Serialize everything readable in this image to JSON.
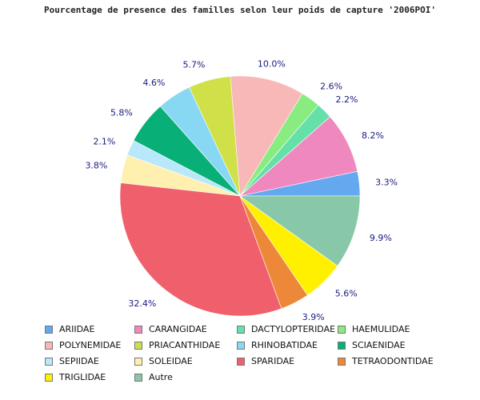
{
  "chart_data": {
    "type": "pie",
    "title": "Pourcentage de presence des familles selon leur poids de capture '2006POI'",
    "slices": [
      {
        "name": "ARIIDAE",
        "value": 3.3,
        "label": "3.3%",
        "color": "#64a8f0"
      },
      {
        "name": "CARANGIDAE",
        "value": 8.2,
        "label": "8.2%",
        "color": "#f088c0"
      },
      {
        "name": "DACTYLOPTERIDAE",
        "value": 2.2,
        "label": "2.2%",
        "color": "#64e0a8"
      },
      {
        "name": "HAEMULIDAE",
        "value": 2.6,
        "label": "2.6%",
        "color": "#88ec80"
      },
      {
        "name": "POLYNEMIDAE",
        "value": 10.0,
        "label": "10.0%",
        "color": "#f8b8b8"
      },
      {
        "name": "PRIACANTHIDAE",
        "value": 5.7,
        "label": "5.7%",
        "color": "#d0e048"
      },
      {
        "name": "RHINOBATIDAE",
        "value": 4.6,
        "label": "4.6%",
        "color": "#88d8f4"
      },
      {
        "name": "SCIAENIDAE",
        "value": 5.8,
        "label": "5.8%",
        "color": "#08b078"
      },
      {
        "name": "SEPIIDAE",
        "value": 2.1,
        "label": "2.1%",
        "color": "#b8e8fa"
      },
      {
        "name": "SOLEIDAE",
        "value": 3.8,
        "label": "3.8%",
        "color": "#fff0b0"
      },
      {
        "name": "SPARIDAE",
        "value": 32.4,
        "label": "32.4%",
        "color": "#f0606c"
      },
      {
        "name": "TETRAODONTIDAE",
        "value": 3.9,
        "label": "3.9%",
        "color": "#ec8838"
      },
      {
        "name": "TRIGLIDAE",
        "value": 5.6,
        "label": "5.6%",
        "color": "#fff000"
      },
      {
        "name": "Autre",
        "value": 9.9,
        "label": "9.9%",
        "color": "#88c8a8"
      }
    ],
    "start_angle_deg": 0,
    "direction": "counterclockwise",
    "legend_position": "bottom"
  }
}
